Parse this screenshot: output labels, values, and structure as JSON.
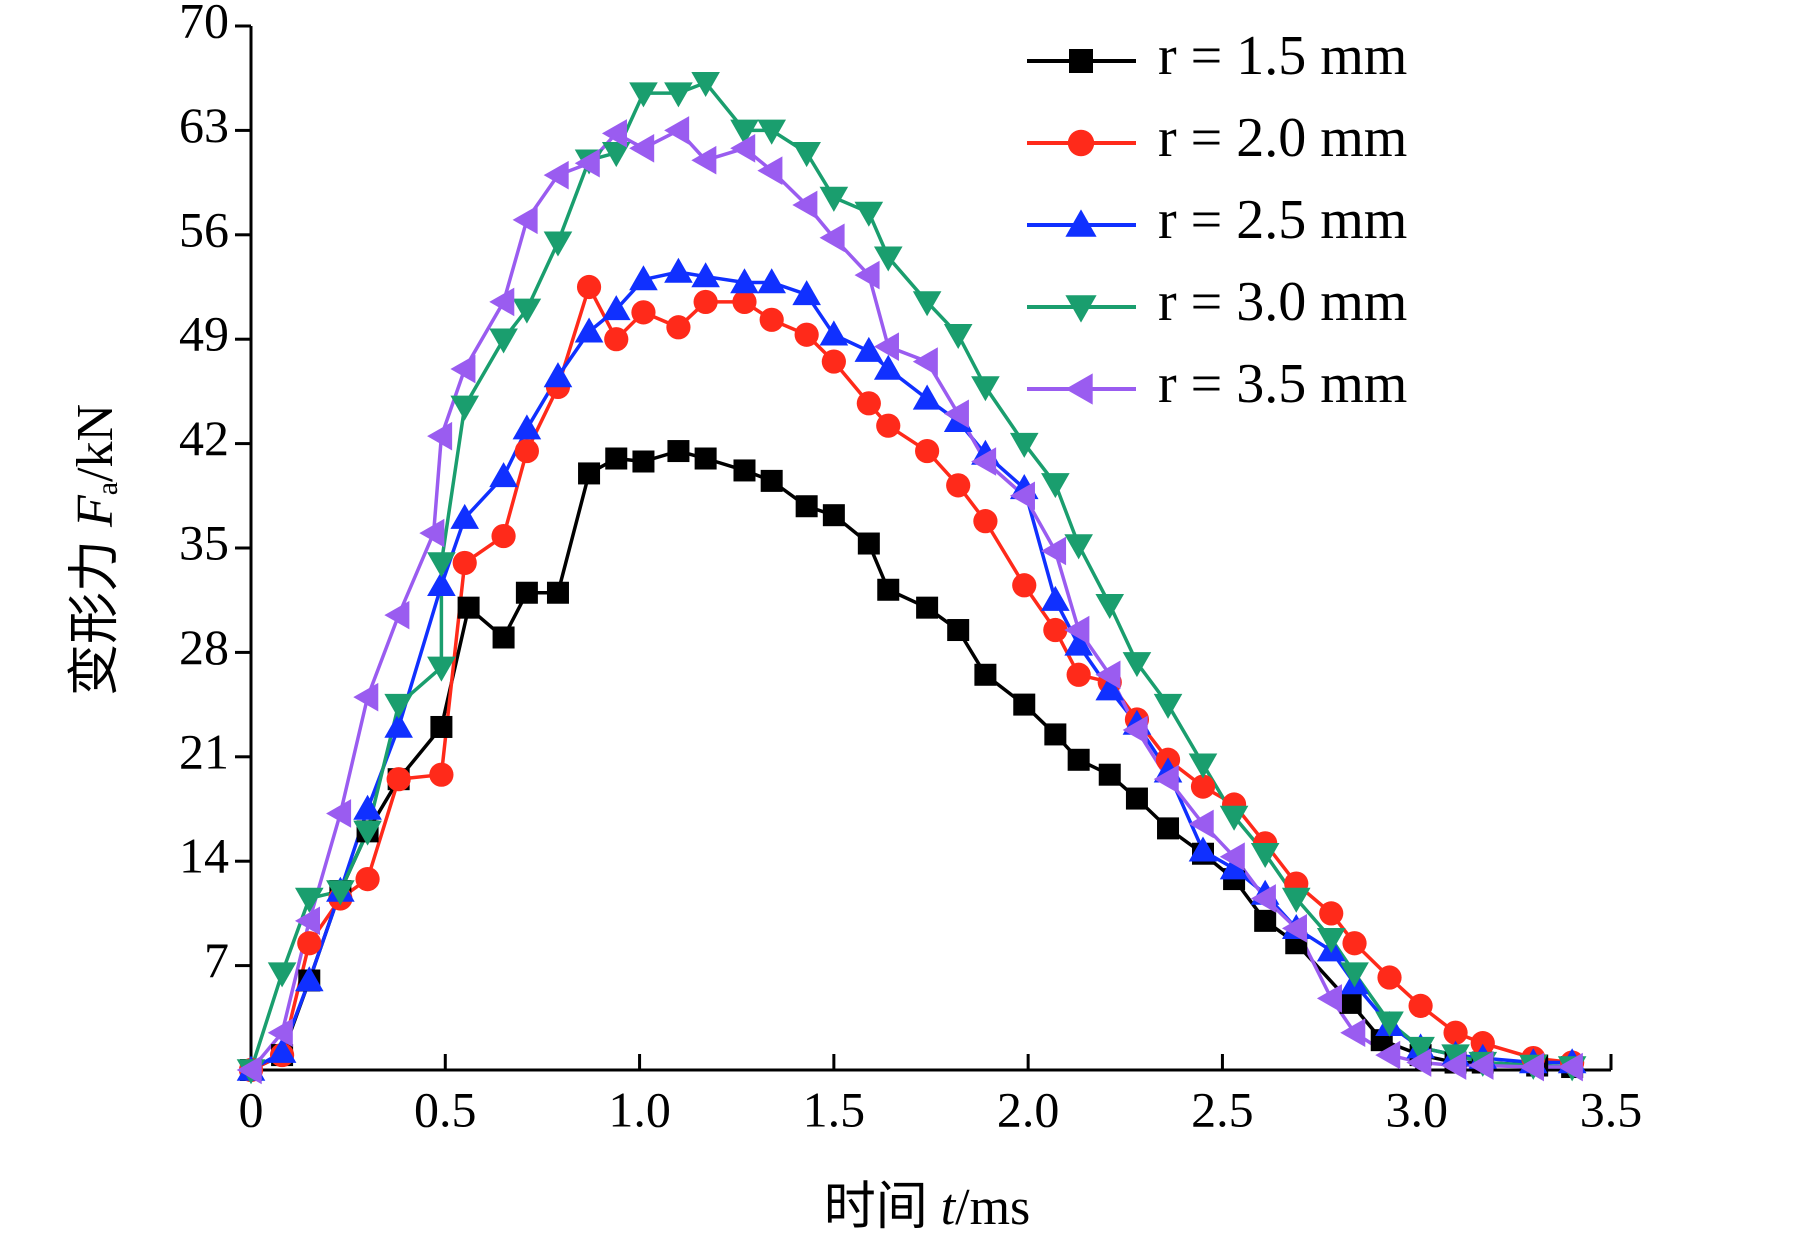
{
  "chart_data": {
    "type": "line",
    "xlabel": {
      "text": "时间",
      "symbol": "t",
      "unit": "/ms"
    },
    "ylabel": {
      "text": "变形力",
      "symbol": "F",
      "subscript": "a",
      "unit": "/kN"
    },
    "xlim": [
      0,
      3.5
    ],
    "ylim": [
      0,
      70
    ],
    "xticks": [
      0,
      0.5,
      {
        "value": 1,
        "label": "1.0"
      },
      1.5,
      {
        "value": 2,
        "label": "2.0"
      },
      2.5,
      {
        "value": 3,
        "label": "3.0"
      },
      3.5
    ],
    "yticks": [
      7,
      14,
      21,
      28,
      35,
      42,
      49,
      56,
      63,
      70
    ],
    "legend": "upper right",
    "series": [
      {
        "name": "r = 1.5 mm",
        "color": "#000000",
        "marker": "square",
        "x": [
          0,
          0.08,
          0.15,
          0.23,
          0.3,
          0.38,
          0.49,
          0.56,
          0.65,
          0.71,
          0.79,
          0.87,
          0.94,
          1.01,
          1.1,
          1.17,
          1.27,
          1.34,
          1.43,
          1.5,
          1.59,
          1.64,
          1.74,
          1.82,
          1.89,
          1.99,
          2.07,
          2.13,
          2.21,
          2.28,
          2.36,
          2.45,
          2.53,
          2.61,
          2.69,
          2.83,
          2.91,
          3.01,
          3.1,
          3.17,
          3.31,
          3.4
        ],
        "values": [
          0,
          1,
          6,
          12,
          16,
          19.5,
          23,
          31,
          29,
          32,
          32,
          40,
          41,
          40.8,
          41.5,
          41,
          40.2,
          39.5,
          37.8,
          37.2,
          35.3,
          32.2,
          31,
          29.5,
          26.5,
          24.5,
          22.5,
          20.8,
          19.8,
          18.2,
          16.2,
          14.5,
          12.8,
          10,
          8.5,
          4.5,
          2,
          1,
          0.5,
          0.5,
          0.3,
          0.2
        ]
      },
      {
        "name": "r = 2.0 mm",
        "color": "#ff2a1a",
        "marker": "circle",
        "x": [
          0,
          0.08,
          0.15,
          0.23,
          0.3,
          0.38,
          0.49,
          0.55,
          0.65,
          0.71,
          0.79,
          0.87,
          0.94,
          1.01,
          1.1,
          1.17,
          1.27,
          1.34,
          1.43,
          1.5,
          1.59,
          1.64,
          1.74,
          1.82,
          1.89,
          1.99,
          2.07,
          2.13,
          2.21,
          2.28,
          2.36,
          2.45,
          2.53,
          2.61,
          2.69,
          2.78,
          2.84,
          2.93,
          3.01,
          3.1,
          3.17,
          3.3,
          3.4
        ],
        "values": [
          0,
          1,
          8.5,
          11.5,
          12.8,
          19.5,
          19.8,
          34,
          35.8,
          41.5,
          45.8,
          52.5,
          49,
          50.8,
          49.8,
          51.5,
          51.5,
          50.3,
          49.3,
          47.5,
          44.7,
          43.2,
          41.5,
          39.2,
          36.8,
          32.5,
          29.5,
          26.5,
          26,
          23.5,
          20.8,
          19,
          17.8,
          15.2,
          12.5,
          10.5,
          8.5,
          6.2,
          4.3,
          2.5,
          1.8,
          0.8,
          0.5
        ]
      },
      {
        "name": "r = 2.5 mm",
        "color": "#1030ff",
        "marker": "triangle-up",
        "x": [
          0,
          0.08,
          0.15,
          0.23,
          0.3,
          0.38,
          0.49,
          0.55,
          0.65,
          0.71,
          0.79,
          0.87,
          0.94,
          1.01,
          1.1,
          1.17,
          1.27,
          1.34,
          1.43,
          1.5,
          1.59,
          1.64,
          1.74,
          1.82,
          1.89,
          1.99,
          2.07,
          2.13,
          2.21,
          2.28,
          2.36,
          2.45,
          2.53,
          2.61,
          2.69,
          2.78,
          2.84,
          2.93,
          3.01,
          3.1,
          3.17,
          3.3,
          3.4
        ],
        "values": [
          0,
          1.2,
          6,
          12,
          17.5,
          23,
          32.5,
          37,
          39.8,
          43,
          46.5,
          49.5,
          51,
          53,
          53.5,
          53.2,
          52.8,
          52.8,
          52,
          49.3,
          48.2,
          47,
          45,
          43.5,
          41.3,
          39,
          31.5,
          28.5,
          25.5,
          23.2,
          20,
          14.7,
          13.5,
          11.8,
          9.5,
          8,
          5.8,
          3,
          1.5,
          1,
          0.8,
          0.5,
          0.5
        ]
      },
      {
        "name": "r = 3.0 mm",
        "color": "#1a9e6e",
        "marker": "triangle-down",
        "x": [
          0,
          0.08,
          0.15,
          0.23,
          0.3,
          0.38,
          0.49,
          0.49,
          0.55,
          0.65,
          0.71,
          0.79,
          0.87,
          0.94,
          1.01,
          1.1,
          1.17,
          1.27,
          1.34,
          1.43,
          1.5,
          1.59,
          1.64,
          1.74,
          1.82,
          1.89,
          1.99,
          2.07,
          2.13,
          2.21,
          2.28,
          2.36,
          2.45,
          2.53,
          2.61,
          2.69,
          2.78,
          2.84,
          2.93,
          3.01,
          3.1,
          3.17,
          3.3,
          3.4
        ],
        "values": [
          0,
          6.5,
          11.5,
          12,
          16,
          24.5,
          27,
          34,
          44.5,
          49,
          51,
          55.5,
          61,
          61.5,
          65.5,
          65.5,
          66.2,
          63,
          63,
          61.5,
          58.5,
          57.5,
          54.5,
          51.5,
          49.3,
          45.8,
          42,
          39.3,
          35.2,
          31.2,
          27.3,
          24.5,
          20.5,
          17,
          14.5,
          11.5,
          8.8,
          6.5,
          3.2,
          1.5,
          1,
          0.5,
          0.3,
          0.2
        ]
      },
      {
        "name": "r = 3.5 mm",
        "color": "#9a5cf0",
        "marker": "triangle-left",
        "x": [
          0,
          0.08,
          0.15,
          0.23,
          0.3,
          0.38,
          0.47,
          0.49,
          0.55,
          0.65,
          0.71,
          0.79,
          0.87,
          0.94,
          1.01,
          1.1,
          1.17,
          1.27,
          1.34,
          1.43,
          1.5,
          1.59,
          1.64,
          1.74,
          1.82,
          1.89,
          1.99,
          2.07,
          2.13,
          2.21,
          2.28,
          2.36,
          2.45,
          2.53,
          2.61,
          2.69,
          2.78,
          2.84,
          2.93,
          3.01,
          3.1,
          3.17,
          3.3,
          3.4
        ],
        "values": [
          0,
          2.5,
          10,
          17.2,
          25,
          30.5,
          36,
          42.5,
          47,
          51.5,
          57,
          60,
          60.8,
          62.8,
          61.8,
          63,
          61,
          61.8,
          60.3,
          58,
          55.8,
          53.3,
          48.5,
          47.5,
          44,
          40.8,
          38.5,
          34.8,
          29.5,
          26.5,
          22.8,
          19.5,
          16.5,
          14.3,
          11.5,
          9.5,
          4.8,
          2.5,
          1,
          0.5,
          0.3,
          0.3,
          0.2,
          0.2
        ]
      }
    ]
  }
}
